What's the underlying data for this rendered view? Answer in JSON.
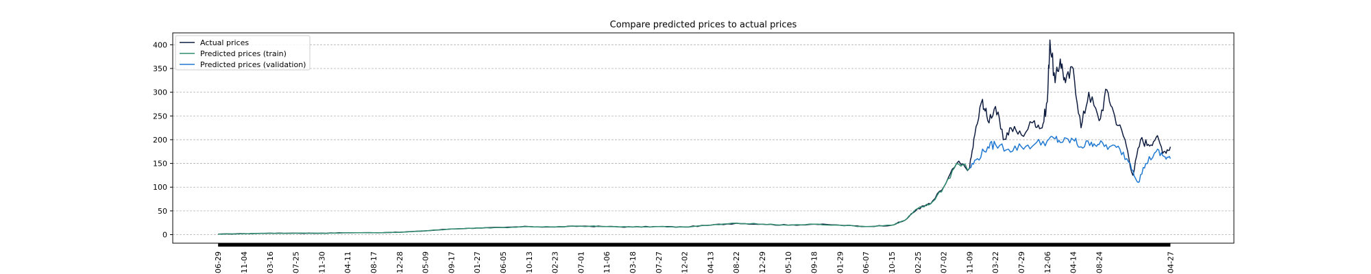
{
  "chart_data": {
    "type": "line",
    "title": "Compare predicted prices to actual prices",
    "xlabel": "",
    "ylabel": "",
    "ylim": [
      -18,
      425
    ],
    "yticks": [
      0,
      50,
      100,
      150,
      200,
      250,
      300,
      350,
      400
    ],
    "grid": "horizontal dashed",
    "legend_position": "top-left",
    "x_tick_labels": [
      "-06-29",
      "-11-04",
      "-03-16",
      "-07-25",
      "-11-30",
      "-04-11",
      "-08-17",
      "-12-28",
      "-05-09",
      "-09-17",
      "-01-27",
      "-06-05",
      "-10-13",
      "-02-23",
      "-07-01",
      "-11-06",
      "-03-18",
      "-07-27",
      "-12-02",
      "-04-13",
      "-08-22",
      "-12-29",
      "-05-10",
      "-09-18",
      "-01-29",
      "-06-07",
      "-10-15",
      "-02-25",
      "-07-02",
      "-11-09",
      "-03-22",
      "-07-29",
      "-12-06",
      "-04-14",
      "-08-24",
      "-04-27"
    ],
    "x_tick_positions": [
      0,
      1,
      2,
      3,
      4,
      5,
      6,
      7,
      8,
      9,
      10,
      11,
      12,
      13,
      14,
      15,
      16,
      17,
      18,
      19,
      20,
      21,
      22,
      23,
      24,
      25,
      26,
      27,
      28,
      29,
      30,
      31,
      32,
      33,
      34,
      36.75
    ],
    "colors": {
      "actual": "#0d1b3e",
      "train": "#2e8b6e",
      "validation": "#1f78d1"
    },
    "series": [
      {
        "name": "Actual prices",
        "color": "#0d1b3e",
        "x": [
          0,
          1,
          2,
          3,
          4,
          5,
          6,
          7,
          8,
          9,
          10,
          11,
          12,
          13,
          14,
          15,
          16,
          17,
          18,
          19,
          20,
          21,
          22,
          23,
          24,
          25,
          26,
          26.5,
          27,
          27.5,
          28,
          28.5,
          29,
          29.2,
          29.5,
          29.7,
          30,
          30.3,
          30.6,
          31,
          31.5,
          31.8,
          32,
          32.1,
          32.3,
          32.5,
          32.7,
          33,
          33.3,
          33.6,
          34,
          34.3,
          34.6,
          35,
          35.3,
          35.6,
          35.9,
          36.2,
          36.5,
          36.75
        ],
        "y": [
          1,
          2,
          3,
          3,
          3,
          4,
          4,
          5,
          8,
          12,
          14,
          15,
          17,
          16,
          18,
          17,
          16,
          17,
          16,
          20,
          24,
          22,
          20,
          22,
          20,
          17,
          20,
          30,
          55,
          65,
          100,
          150,
          140,
          210,
          285,
          240,
          270,
          200,
          225,
          210,
          240,
          225,
          280,
          410,
          320,
          370,
          320,
          350,
          225,
          300,
          240,
          305,
          250,
          200,
          125,
          200,
          190,
          205,
          175,
          185
        ]
      },
      {
        "name": "Predicted prices (train)",
        "color": "#2e8b6e",
        "x": [
          0,
          1,
          2,
          3,
          4,
          5,
          6,
          7,
          8,
          9,
          10,
          11,
          12,
          13,
          14,
          15,
          16,
          17,
          18,
          19,
          20,
          21,
          22,
          23,
          24,
          25,
          26,
          26.5,
          27,
          27.5,
          28,
          28.5,
          29
        ],
        "y": [
          1,
          2,
          3,
          3,
          3,
          4,
          4,
          5,
          8,
          12,
          14,
          15,
          17,
          16,
          18,
          17,
          16,
          17,
          16,
          20,
          24,
          22,
          20,
          22,
          20,
          17,
          20,
          30,
          55,
          65,
          100,
          150,
          140
        ]
      },
      {
        "name": "Predicted prices (validation)",
        "color": "#1f78d1",
        "x": [
          29,
          29.3,
          29.7,
          30,
          30.5,
          31,
          31.5,
          32,
          32.3,
          32.6,
          33,
          33.3,
          33.7,
          34,
          34.4,
          34.8,
          35.2,
          35.5,
          35.8,
          36.2,
          36.5,
          36.75
        ],
        "y": [
          140,
          160,
          185,
          190,
          180,
          185,
          190,
          198,
          202,
          195,
          200,
          185,
          195,
          190,
          185,
          180,
          150,
          110,
          150,
          175,
          165,
          160
        ]
      }
    ]
  }
}
